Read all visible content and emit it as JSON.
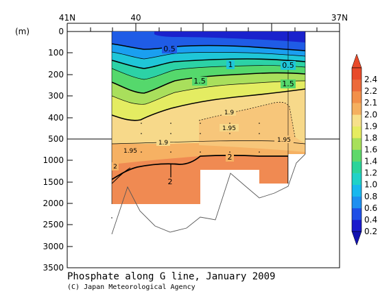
{
  "chart_data": {
    "type": "heatmap",
    "title": "Phosphate along G line, January 2009",
    "credit": "(C) Japan Meteorological Agency",
    "ylabel": "(m)",
    "x_ticks": [
      "41N",
      "40",
      "37N"
    ],
    "y_ticks_upper": [
      "0",
      "100",
      "200",
      "300",
      "400",
      "500"
    ],
    "y_ticks_lower": [
      "1000",
      "1500",
      "2000",
      "2500",
      "3000",
      "3500"
    ],
    "colorbar_ticks": [
      "0.2",
      "0.4",
      "0.6",
      "0.8",
      "1.0",
      "1.2",
      "1.4",
      "1.6",
      "1.8",
      "1.9",
      "2.0",
      "2.1",
      "2.2",
      "2.4"
    ],
    "colorbar_colors": [
      "#1a1acc",
      "#1f4fe6",
      "#1e8ff0",
      "#19b8ee",
      "#20d2c8",
      "#2bd49a",
      "#5fd86a",
      "#a8e05a",
      "#e6ec60",
      "#f7e08a",
      "#f5b060",
      "#f2904a",
      "#ec6a3a",
      "#e84a2a"
    ],
    "contour_labels": [
      "0.5",
      "1",
      "0.5",
      "1.5",
      "1.5",
      "1.9",
      "1.95",
      "1.9",
      "1.95",
      "1.95",
      "2",
      "2",
      "2"
    ],
    "colorbar": {
      "min": 0.2,
      "max": 2.4,
      "extend": "both"
    }
  }
}
